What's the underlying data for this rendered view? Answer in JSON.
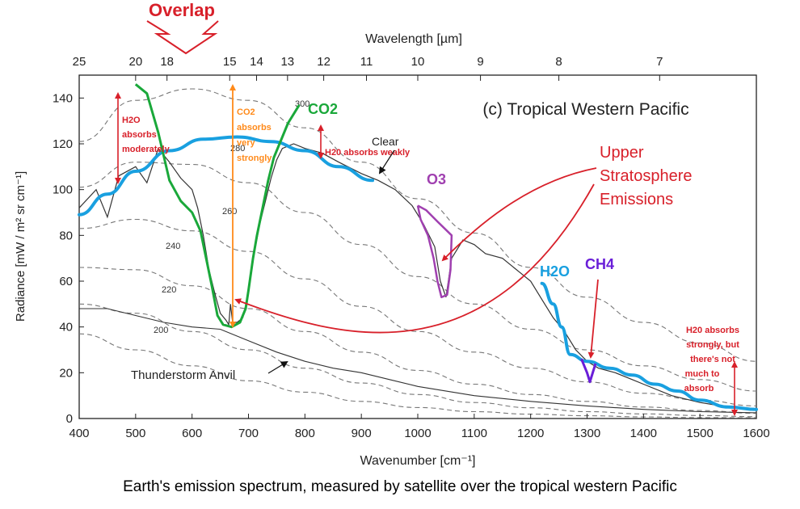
{
  "chart_data": {
    "type": "line",
    "title": "(c) Tropical Western Pacific",
    "xlabel": "Wavenumber [cm⁻¹]",
    "ylabel": "Radiance [mW / m² sr cm⁻¹]",
    "top_axis_label": "Wavelength [µm]",
    "xlim": [
      400,
      1600
    ],
    "ylim": [
      0,
      150
    ],
    "x_ticks": [
      400,
      500,
      600,
      700,
      800,
      900,
      1000,
      1100,
      1200,
      1300,
      1400,
      1500,
      1600
    ],
    "y_ticks": [
      0,
      20,
      40,
      60,
      80,
      100,
      120,
      140
    ],
    "wavelength_ticks": [
      {
        "label": "25",
        "wavenumber": 400
      },
      {
        "label": "20",
        "wavenumber": 500
      },
      {
        "label": "18",
        "wavenumber": 555.6
      },
      {
        "label": "15",
        "wavenumber": 666.7
      },
      {
        "label": "14",
        "wavenumber": 714.3
      },
      {
        "label": "13",
        "wavenumber": 769.2
      },
      {
        "label": "12",
        "wavenumber": 833.3
      },
      {
        "label": "11",
        "wavenumber": 909.1
      },
      {
        "label": "10",
        "wavenumber": 1000
      },
      {
        "label": "9",
        "wavenumber": 1111.1
      },
      {
        "label": "8",
        "wavenumber": 1250
      },
      {
        "label": "7",
        "wavenumber": 1428.6
      }
    ],
    "planck_curves": [
      {
        "label": "300",
        "values": [
          [
            400,
            121
          ],
          [
            500,
            139
          ],
          [
            600,
            144
          ],
          [
            700,
            139
          ],
          [
            800,
            127
          ],
          [
            900,
            112
          ],
          [
            1000,
            96
          ],
          [
            1100,
            81
          ],
          [
            1200,
            66
          ],
          [
            1300,
            53
          ],
          [
            1400,
            42
          ],
          [
            1500,
            33
          ],
          [
            1600,
            25
          ]
        ]
      },
      {
        "label": "280",
        "values": [
          [
            400,
            101
          ],
          [
            500,
            112
          ],
          [
            600,
            111
          ],
          [
            700,
            103
          ],
          [
            800,
            90
          ],
          [
            900,
            76
          ],
          [
            1000,
            62
          ],
          [
            1100,
            50
          ],
          [
            1200,
            39
          ],
          [
            1300,
            30
          ],
          [
            1400,
            23
          ],
          [
            1500,
            17
          ],
          [
            1600,
            12
          ]
        ]
      },
      {
        "label": "260",
        "values": [
          [
            400,
            83
          ],
          [
            500,
            87
          ],
          [
            600,
            82
          ],
          [
            700,
            73
          ],
          [
            800,
            61
          ],
          [
            900,
            49
          ],
          [
            1000,
            38
          ],
          [
            1100,
            29
          ],
          [
            1200,
            22
          ],
          [
            1300,
            16
          ],
          [
            1400,
            11
          ],
          [
            1500,
            8
          ],
          [
            1600,
            5.5
          ]
        ]
      },
      {
        "label": "240",
        "values": [
          [
            400,
            66
          ],
          [
            500,
            65
          ],
          [
            600,
            58
          ],
          [
            700,
            48
          ],
          [
            800,
            38
          ],
          [
            900,
            29
          ],
          [
            1000,
            21
          ],
          [
            1100,
            15
          ],
          [
            1200,
            10.5
          ],
          [
            1300,
            7.5
          ],
          [
            1400,
            5
          ],
          [
            1500,
            3.5
          ],
          [
            1600,
            2.3
          ]
        ]
      },
      {
        "label": "220",
        "values": [
          [
            400,
            50
          ],
          [
            500,
            46
          ],
          [
            600,
            38
          ],
          [
            700,
            30
          ],
          [
            800,
            22
          ],
          [
            900,
            15.5
          ],
          [
            1000,
            10.5
          ],
          [
            1100,
            7
          ],
          [
            1200,
            4.7
          ],
          [
            1300,
            3
          ],
          [
            1400,
            2
          ],
          [
            1500,
            1.3
          ],
          [
            1600,
            0.8
          ]
        ]
      },
      {
        "label": "200",
        "values": [
          [
            400,
            37
          ],
          [
            500,
            30
          ],
          [
            600,
            23
          ],
          [
            700,
            16.5
          ],
          [
            800,
            11.5
          ],
          [
            900,
            7.5
          ],
          [
            1000,
            4.8
          ],
          [
            1100,
            3
          ],
          [
            1200,
            1.9
          ],
          [
            1300,
            1.2
          ],
          [
            1400,
            0.7
          ],
          [
            1500,
            0.4
          ],
          [
            1600,
            0.3
          ]
        ]
      }
    ],
    "series": [
      {
        "name": "Clear",
        "values": [
          [
            400,
            92
          ],
          [
            430,
            100
          ],
          [
            450,
            88
          ],
          [
            470,
            106
          ],
          [
            500,
            110
          ],
          [
            520,
            103
          ],
          [
            540,
            118
          ],
          [
            560,
            112
          ],
          [
            580,
            105
          ],
          [
            600,
            100
          ],
          [
            610,
            92
          ],
          [
            620,
            80
          ],
          [
            630,
            65
          ],
          [
            640,
            55
          ],
          [
            650,
            46
          ],
          [
            660,
            43
          ],
          [
            665,
            41
          ],
          [
            668,
            50
          ],
          [
            672,
            42
          ],
          [
            680,
            42
          ],
          [
            690,
            44
          ],
          [
            700,
            55
          ],
          [
            710,
            72
          ],
          [
            720,
            85
          ],
          [
            730,
            95
          ],
          [
            740,
            105
          ],
          [
            750,
            113
          ],
          [
            760,
            118
          ],
          [
            780,
            120
          ],
          [
            800,
            118
          ],
          [
            830,
            116
          ],
          [
            860,
            112
          ],
          [
            900,
            107
          ],
          [
            930,
            104
          ],
          [
            960,
            100
          ],
          [
            990,
            93
          ],
          [
            1010,
            85
          ],
          [
            1030,
            75
          ],
          [
            1040,
            60
          ],
          [
            1050,
            53
          ],
          [
            1060,
            70
          ],
          [
            1080,
            78
          ],
          [
            1100,
            76
          ],
          [
            1120,
            72
          ],
          [
            1150,
            70
          ],
          [
            1180,
            64
          ],
          [
            1200,
            60
          ],
          [
            1220,
            52
          ],
          [
            1240,
            44
          ],
          [
            1260,
            38
          ],
          [
            1280,
            30
          ],
          [
            1300,
            25
          ],
          [
            1320,
            22
          ],
          [
            1350,
            20
          ],
          [
            1380,
            17
          ],
          [
            1400,
            15
          ],
          [
            1450,
            10
          ],
          [
            1500,
            7
          ],
          [
            1550,
            5
          ],
          [
            1600,
            4
          ]
        ]
      },
      {
        "name": "Thunderstorm Anvil",
        "values": [
          [
            400,
            48
          ],
          [
            450,
            48
          ],
          [
            500,
            45
          ],
          [
            550,
            42
          ],
          [
            600,
            40
          ],
          [
            650,
            39
          ],
          [
            700,
            34
          ],
          [
            750,
            29
          ],
          [
            800,
            25
          ],
          [
            850,
            22
          ],
          [
            900,
            20
          ],
          [
            950,
            17
          ],
          [
            1000,
            14
          ],
          [
            1100,
            10
          ],
          [
            1200,
            7.5
          ],
          [
            1300,
            5.5
          ],
          [
            1400,
            4
          ],
          [
            1500,
            3
          ],
          [
            1600,
            2.5
          ]
        ]
      }
    ],
    "annotations": {
      "overlap": "Overlap",
      "co2": "CO2",
      "o3": "O3",
      "h2o": "H2O",
      "ch4": "CH4",
      "h2o_moderate_1": "H2O",
      "h2o_moderate_2": "absorbs",
      "h2o_moderate_3": "moderately",
      "co2_strong_1": "CO2",
      "co2_strong_2": "absorbs",
      "co2_strong_3": "very",
      "co2_strong_4": "strongly",
      "h2o_weak": "H20 absorbs weakly",
      "upper_1": "Upper",
      "upper_2": "Stratosphere",
      "upper_3": "Emissions",
      "h2o_strong_1": "H20 absorbs",
      "h2o_strong_2": "strongly, but",
      "h2o_strong_3": "there's not",
      "h2o_strong_4": "much to",
      "h2o_strong_5": "absorb",
      "clear_label": "Clear",
      "anvil_label": "Thunderstorm Anvil"
    },
    "colors": {
      "co2": "#1aa83a",
      "o3": "#a040b0",
      "h2o": "#19a0e0",
      "ch4": "#6a1ed8",
      "arrow_red": "#d8202a",
      "co2_arrow": "#ff8a1a"
    }
  },
  "caption": "Earth's emission spectrum, measured by satellite over the tropical western Pacific"
}
